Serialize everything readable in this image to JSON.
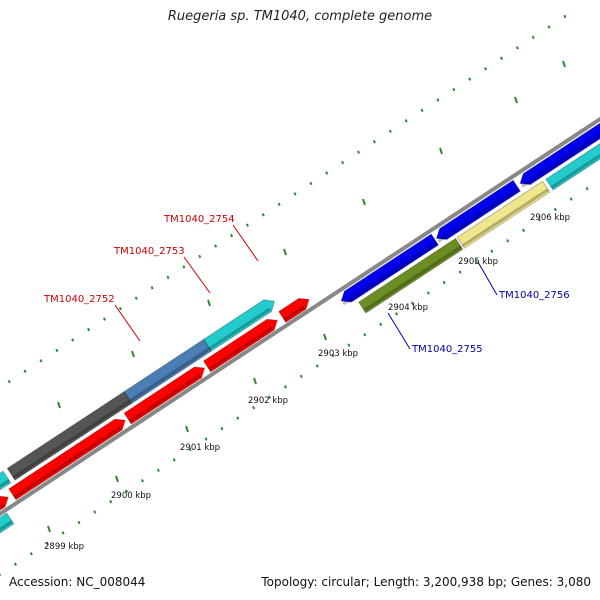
{
  "title": "Ruegeria sp. TM1040, complete genome",
  "footer": {
    "accession": "Accession: NC_008044",
    "summary": "Topology: circular; Length: 3,200,938 bp; Genes: 3,080"
  },
  "colors": {
    "backbone": "#888888",
    "ticks": "#2e8b2e",
    "label_plus": "#cc0000",
    "label_minus": "#0000aa"
  },
  "scale": {
    "tick_labels": [
      "2899 kbp",
      "2900 kbp",
      "2901 kbp",
      "2902 kbp",
      "2903 kbp",
      "2904 kbp",
      "2905 kbp",
      "2906 kbp"
    ]
  },
  "genes": [
    {
      "name": "TM1040_2752",
      "color": "#4a7eb5"
    },
    {
      "name": "TM1040_2753",
      "color": "#22cccc"
    },
    {
      "name": "TM1040_2754",
      "color": "#ff0000"
    },
    {
      "name": "TM1040_2755",
      "color": "#6b8e23"
    },
    {
      "name": "TM1040_2756",
      "color": "#f0e68c"
    }
  ]
}
